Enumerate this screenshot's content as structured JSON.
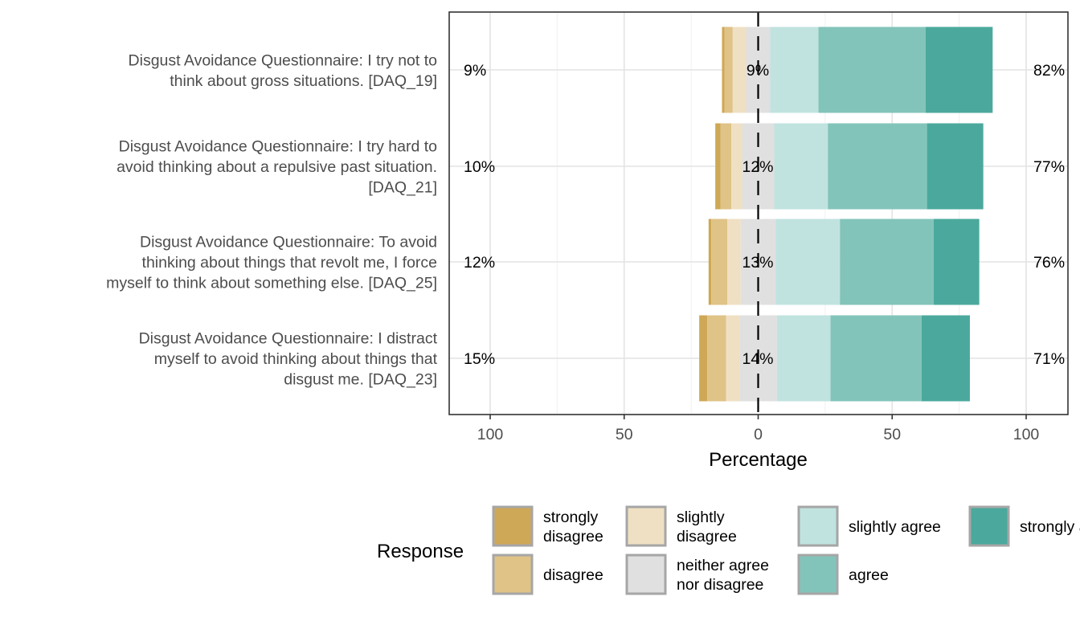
{
  "chart_data": {
    "type": "bar",
    "orientation": "horizontal-diverging",
    "xlabel": "Percentage",
    "x_ticks": [
      100,
      50,
      0,
      50,
      100
    ],
    "xlim": [
      -100,
      100
    ],
    "grid": true,
    "legend": {
      "title": "Response",
      "placement": "bottom",
      "entries": [
        {
          "key": "strongly_disagree",
          "lines": [
            "strongly",
            "disagree"
          ]
        },
        {
          "key": "disagree",
          "lines": [
            "disagree"
          ]
        },
        {
          "key": "slightly_disagree",
          "lines": [
            "slightly",
            "disagree"
          ]
        },
        {
          "key": "neither",
          "lines": [
            "neither agree",
            "nor disagree"
          ]
        },
        {
          "key": "slightly_agree",
          "lines": [
            "slightly agree"
          ]
        },
        {
          "key": "agree",
          "lines": [
            "agree"
          ]
        },
        {
          "key": "strongly_agree",
          "lines": [
            "strongly agree"
          ]
        }
      ]
    },
    "colors": {
      "strongly_disagree": "#CFA857",
      "disagree": "#DFC387",
      "slightly_disagree": "#EFE0C3",
      "neither": "#E0E0E0",
      "slightly_agree": "#C0E3DF",
      "agree": "#83C4BA",
      "strongly_agree": "#4AA99C"
    },
    "items": [
      {
        "lines": [
          "Disgust Avoidance Questionnaire: I try not to",
          "think about gross situations. [DAQ_19]"
        ],
        "values": {
          "strongly_disagree": 1,
          "disagree": 3,
          "slightly_disagree": 5,
          "neither": 9,
          "slightly_agree": 18,
          "agree": 40,
          "strongly_agree": 25
        },
        "left_pct": "9%",
        "center_pct": "9%",
        "right_pct": "82%"
      },
      {
        "lines": [
          "Disgust Avoidance Questionnaire: I try hard to",
          "avoid thinking about a repulsive past situation.",
          "[DAQ_21]"
        ],
        "values": {
          "strongly_disagree": 2,
          "disagree": 4,
          "slightly_disagree": 4,
          "neither": 12,
          "slightly_agree": 20,
          "agree": 37,
          "strongly_agree": 21
        },
        "left_pct": "10%",
        "center_pct": "12%",
        "right_pct": "77%"
      },
      {
        "lines": [
          "Disgust Avoidance Questionnaire: To avoid",
          "thinking about things that revolt me, I force",
          "myself to think about something else. [DAQ_25]"
        ],
        "values": {
          "strongly_disagree": 1,
          "disagree": 6,
          "slightly_disagree": 5,
          "neither": 13,
          "slightly_agree": 24,
          "agree": 35,
          "strongly_agree": 17
        },
        "left_pct": "12%",
        "center_pct": "13%",
        "right_pct": "76%"
      },
      {
        "lines": [
          "Disgust Avoidance Questionnaire: I distract",
          "myself to avoid thinking about things that",
          "disgust me. [DAQ_23]"
        ],
        "values": {
          "strongly_disagree": 3,
          "disagree": 7,
          "slightly_disagree": 5,
          "neither": 14,
          "slightly_agree": 20,
          "agree": 34,
          "strongly_agree": 18
        },
        "left_pct": "15%",
        "center_pct": "14%",
        "right_pct": "71%"
      }
    ]
  }
}
